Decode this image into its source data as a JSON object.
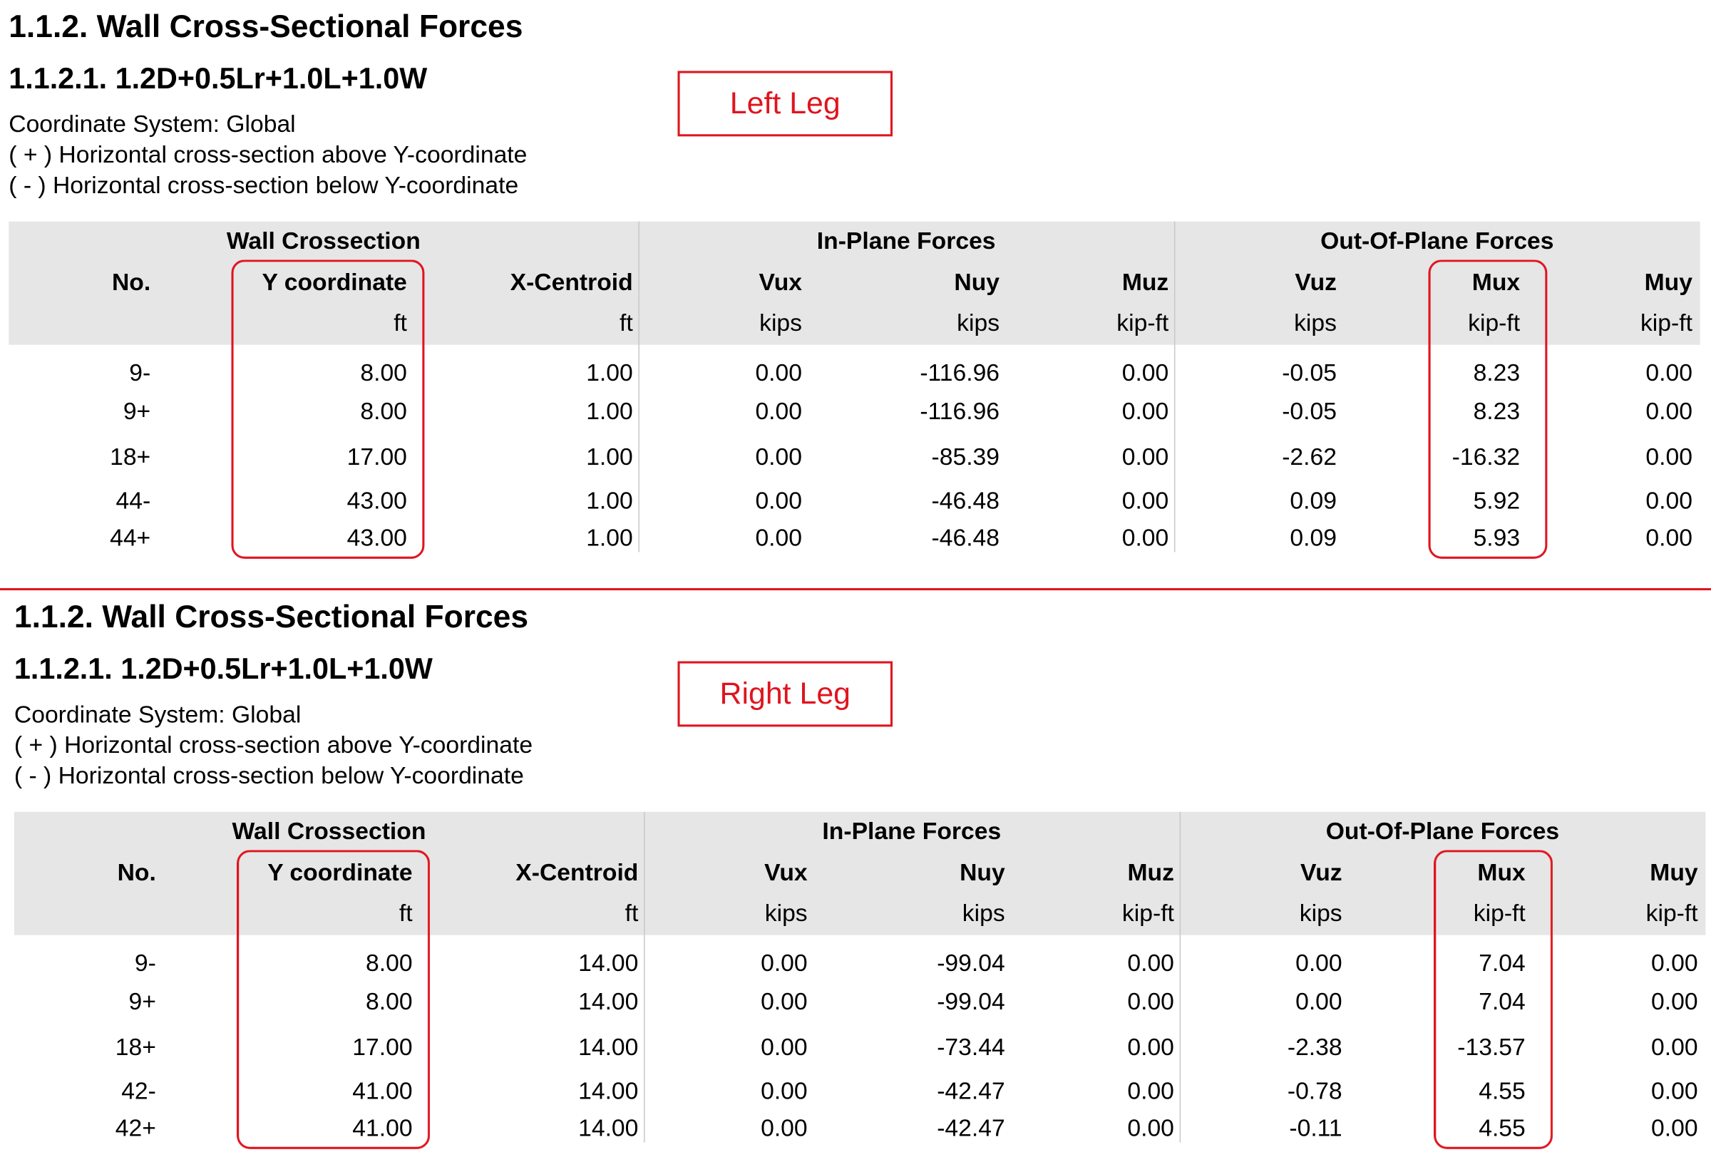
{
  "sections": [
    {
      "title": "1.1.2. Wall Cross-Sectional Forces",
      "subtitle": "1.1.2.1. 1.2D+0.5Lr+1.0L+1.0W",
      "tag": "Left Leg",
      "notes": [
        "Coordinate System: Global",
        "( + ) Horizontal cross-section above Y-coordinate",
        "( - ) Horizontal cross-section below Y-coordinate"
      ],
      "table": {
        "groups": [
          "Wall Crossection",
          "In-Plane Forces",
          "Out-Of-Plane Forces"
        ],
        "columns": [
          {
            "name": "No."
          },
          {
            "name": "Y coordinate",
            "unit": "ft"
          },
          {
            "name": "X-Centroid",
            "unit": "ft"
          },
          {
            "name": "Vux",
            "unit": "kips"
          },
          {
            "name": "Nuy",
            "unit": "kips"
          },
          {
            "name": "Muz",
            "unit": "kip-ft"
          },
          {
            "name": "Vuz",
            "unit": "kips"
          },
          {
            "name": "Mux",
            "unit": "kip-ft"
          },
          {
            "name": "Muy",
            "unit": "kip-ft"
          }
        ],
        "rows": [
          [
            "9-",
            "8.00",
            "1.00",
            "0.00",
            "-116.96",
            "0.00",
            "-0.05",
            "8.23",
            "0.00"
          ],
          [
            "9+",
            "8.00",
            "1.00",
            "0.00",
            "-116.96",
            "0.00",
            "-0.05",
            "8.23",
            "0.00"
          ],
          [
            "18+",
            "17.00",
            "1.00",
            "0.00",
            "-85.39",
            "0.00",
            "-2.62",
            "-16.32",
            "0.00"
          ],
          [
            "44-",
            "43.00",
            "1.00",
            "0.00",
            "-46.48",
            "0.00",
            "0.09",
            "5.92",
            "0.00"
          ],
          [
            "44+",
            "43.00",
            "1.00",
            "0.00",
            "-46.48",
            "0.00",
            "0.09",
            "5.93",
            "0.00"
          ]
        ]
      }
    },
    {
      "title": "1.1.2. Wall Cross-Sectional Forces",
      "subtitle": "1.1.2.1. 1.2D+0.5Lr+1.0L+1.0W",
      "tag": "Right Leg",
      "notes": [
        "Coordinate System: Global",
        "( + ) Horizontal cross-section above Y-coordinate",
        "( - ) Horizontal cross-section below Y-coordinate"
      ],
      "table": {
        "groups": [
          "Wall Crossection",
          "In-Plane Forces",
          "Out-Of-Plane Forces"
        ],
        "columns": [
          {
            "name": "No."
          },
          {
            "name": "Y coordinate",
            "unit": "ft"
          },
          {
            "name": "X-Centroid",
            "unit": "ft"
          },
          {
            "name": "Vux",
            "unit": "kips"
          },
          {
            "name": "Nuy",
            "unit": "kips"
          },
          {
            "name": "Muz",
            "unit": "kip-ft"
          },
          {
            "name": "Vuz",
            "unit": "kips"
          },
          {
            "name": "Mux",
            "unit": "kip-ft"
          },
          {
            "name": "Muy",
            "unit": "kip-ft"
          }
        ],
        "rows": [
          [
            "9-",
            "8.00",
            "14.00",
            "0.00",
            "-99.04",
            "0.00",
            "0.00",
            "7.04",
            "0.00"
          ],
          [
            "9+",
            "8.00",
            "14.00",
            "0.00",
            "-99.04",
            "0.00",
            "0.00",
            "7.04",
            "0.00"
          ],
          [
            "18+",
            "17.00",
            "14.00",
            "0.00",
            "-73.44",
            "0.00",
            "-2.38",
            "-13.57",
            "0.00"
          ],
          [
            "42-",
            "41.00",
            "14.00",
            "0.00",
            "-42.47",
            "0.00",
            "-0.78",
            "4.55",
            "0.00"
          ],
          [
            "42+",
            "41.00",
            "14.00",
            "0.00",
            "-42.47",
            "0.00",
            "-0.11",
            "4.55",
            "0.00"
          ]
        ]
      }
    }
  ]
}
